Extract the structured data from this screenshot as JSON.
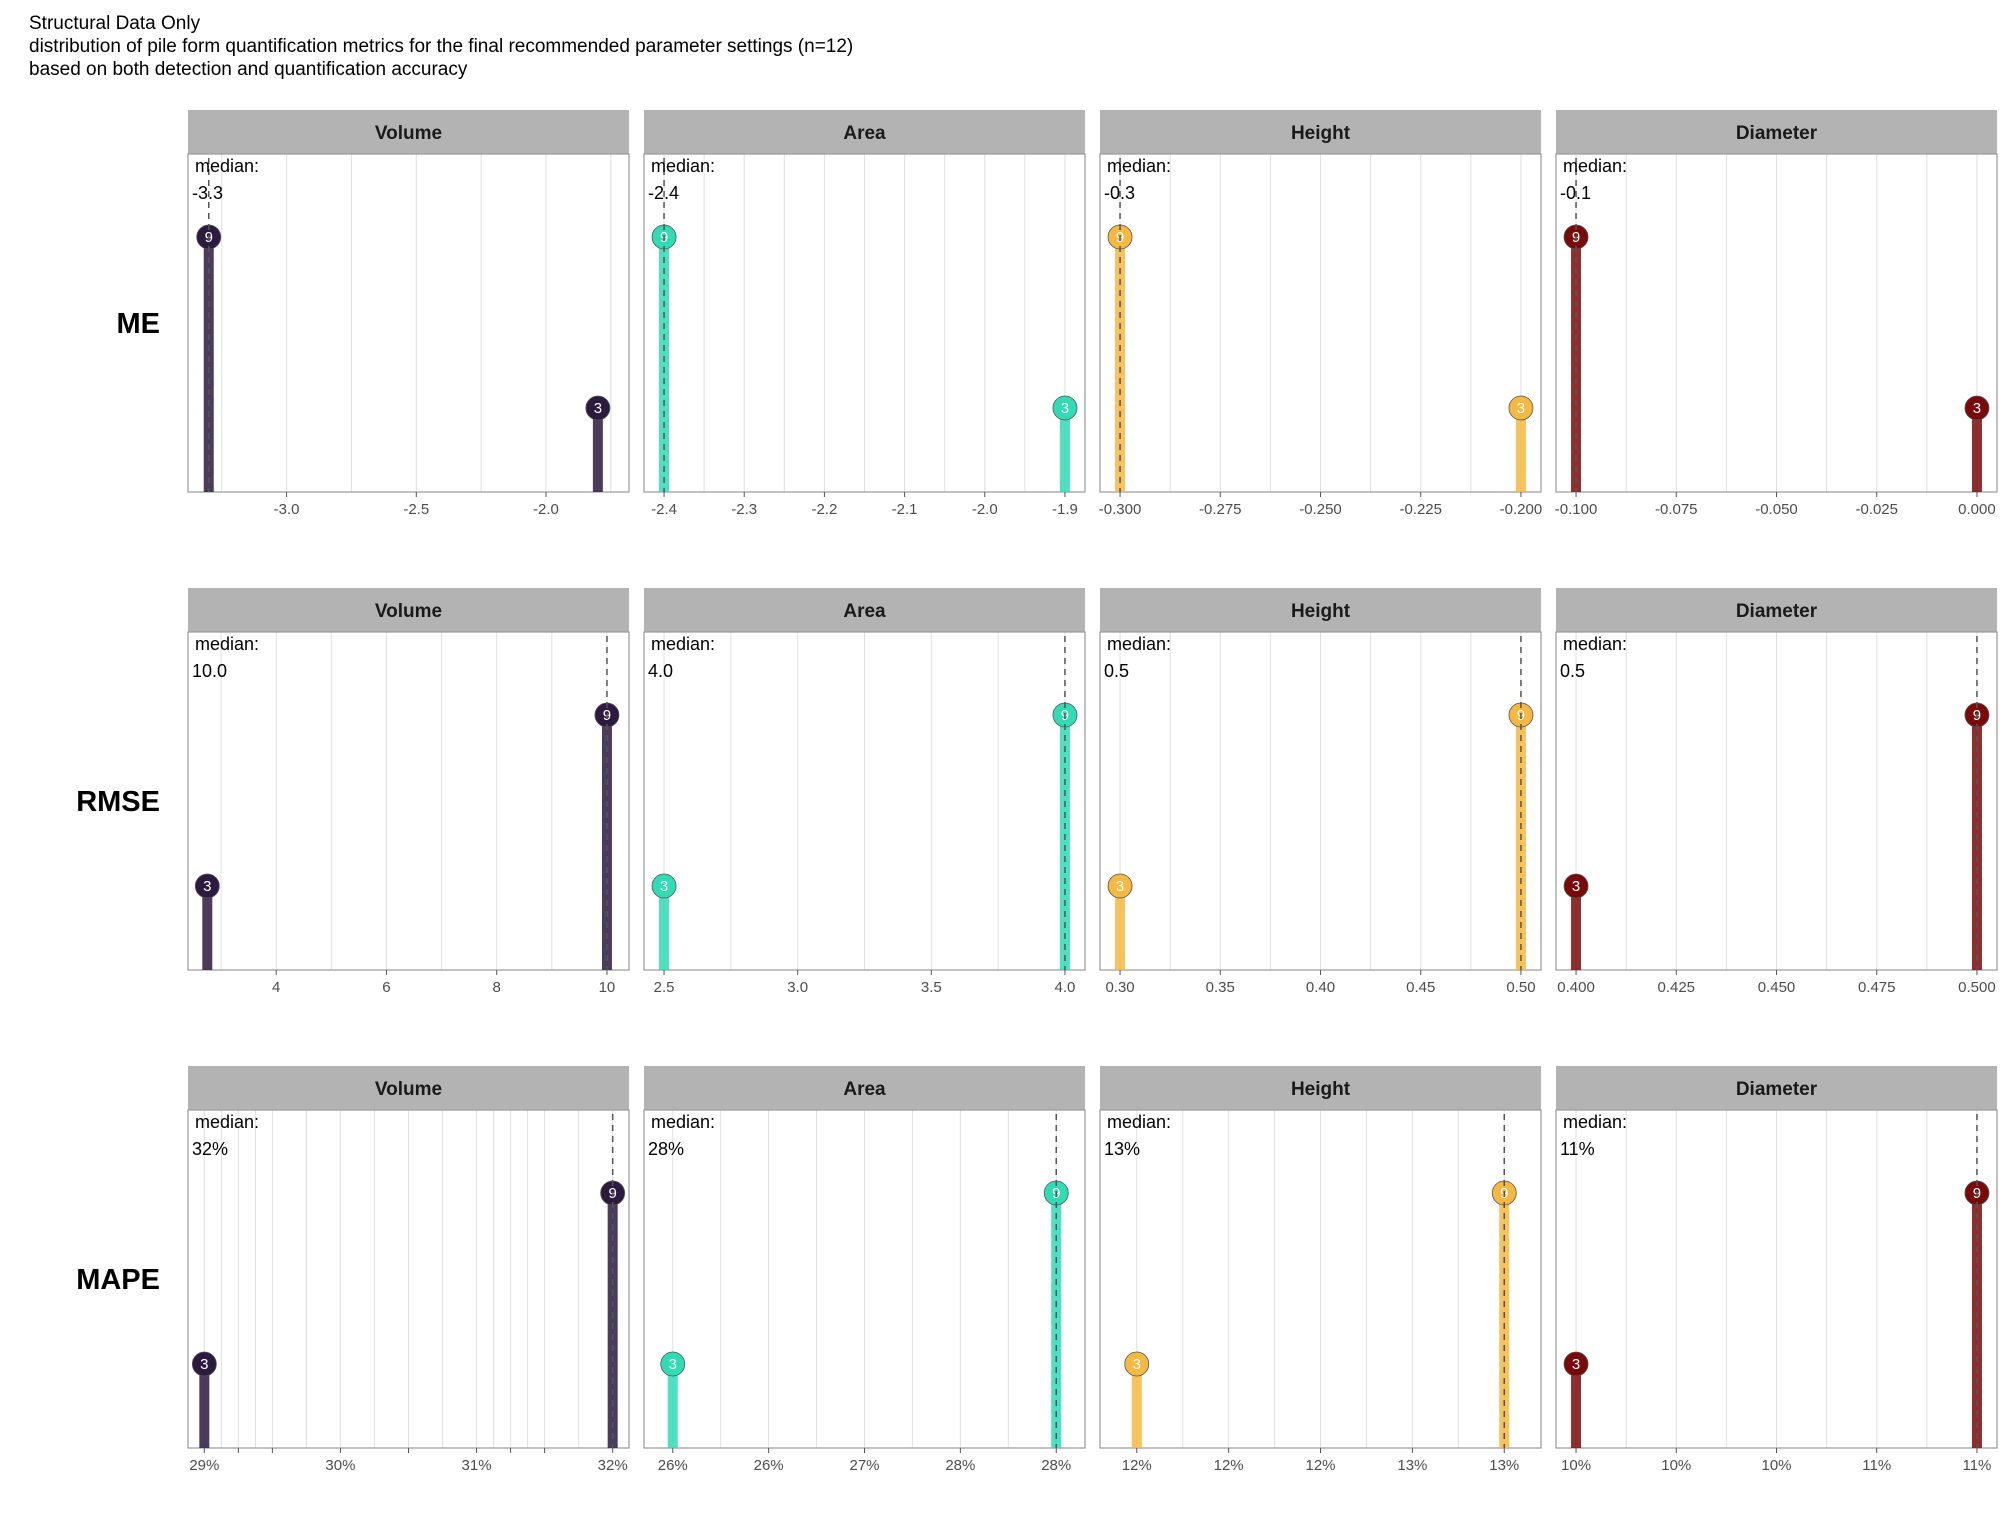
{
  "title": "Structural Data Only",
  "subtitle": "distribution of pile form quantification metrics for the final recommended parameter settings (n=12)",
  "caption": "based on both detection and quantification accuracy",
  "colors": {
    "Volume": "#2c1a3f",
    "Area": "#2fdcb4",
    "Height": "#f5b840",
    "Diameter": "#7a0a0a",
    "strip_bg": "#b3b3b3",
    "grid": "#e0e0e0",
    "panel_border": "#9a9a9a"
  },
  "chart_data": {
    "type": "bar",
    "columns": [
      "Volume",
      "Area",
      "Height",
      "Diameter"
    ],
    "median_label": "median:",
    "rows": [
      {
        "label": "ME",
        "panels": [
          {
            "strip": "Volume",
            "xlim": [
              -3.38,
              -1.68
            ],
            "ticks": [
              -3.0,
              -2.5,
              -2.0
            ],
            "tick_labels": [
              "-3.0",
              "-2.5",
              "-2.0"
            ],
            "points": [
              {
                "x": -3.3,
                "count": 9
              },
              {
                "x": -1.8,
                "count": 3
              }
            ],
            "median": -3.3,
            "median_text": "-3.3"
          },
          {
            "strip": "Area",
            "xlim": [
              -2.425,
              -1.875
            ],
            "ticks": [
              -2.4,
              -2.3,
              -2.2,
              -2.1,
              -2.0,
              -1.9
            ],
            "tick_labels": [
              "-2.4",
              "-2.3",
              "-2.2",
              "-2.1",
              "-2.0",
              "-1.9"
            ],
            "points": [
              {
                "x": -2.4,
                "count": 9
              },
              {
                "x": -1.9,
                "count": 3
              }
            ],
            "median": -2.4,
            "median_text": "-2.4"
          },
          {
            "strip": "Height",
            "xlim": [
              -0.305,
              -0.195
            ],
            "ticks": [
              -0.3,
              -0.275,
              -0.25,
              -0.225,
              -0.2
            ],
            "tick_labels": [
              "-0.300",
              "-0.275",
              "-0.250",
              "-0.225",
              "-0.200"
            ],
            "points": [
              {
                "x": -0.3,
                "count": 9
              },
              {
                "x": -0.2,
                "count": 3
              }
            ],
            "median": -0.3,
            "median_text": "-0.3"
          },
          {
            "strip": "Diameter",
            "xlim": [
              -0.105,
              0.005
            ],
            "ticks": [
              -0.1,
              -0.075,
              -0.05,
              -0.025,
              0.0
            ],
            "tick_labels": [
              "-0.100",
              "-0.075",
              "-0.050",
              "-0.025",
              "0.000"
            ],
            "points": [
              {
                "x": -0.1,
                "count": 9
              },
              {
                "x": 0.0,
                "count": 3
              }
            ],
            "median": -0.1,
            "median_text": "-0.1"
          }
        ]
      },
      {
        "label": "RMSE",
        "panels": [
          {
            "strip": "Volume",
            "xlim": [
              2.4,
              10.4
            ],
            "ticks": [
              4,
              6,
              8,
              10
            ],
            "tick_labels": [
              "4",
              "6",
              "8",
              "10"
            ],
            "points": [
              {
                "x": 2.75,
                "count": 3
              },
              {
                "x": 10.0,
                "count": 9
              }
            ],
            "median": 10.0,
            "median_text": "10.0"
          },
          {
            "strip": "Area",
            "xlim": [
              2.425,
              4.075
            ],
            "ticks": [
              2.5,
              3.0,
              3.5,
              4.0
            ],
            "tick_labels": [
              "2.5",
              "3.0",
              "3.5",
              "4.0"
            ],
            "points": [
              {
                "x": 2.5,
                "count": 3
              },
              {
                "x": 4.0,
                "count": 9
              }
            ],
            "median": 4.0,
            "median_text": "4.0"
          },
          {
            "strip": "Height",
            "xlim": [
              0.29,
              0.51
            ],
            "ticks": [
              0.3,
              0.35,
              0.4,
              0.45,
              0.5
            ],
            "tick_labels": [
              "0.30",
              "0.35",
              "0.40",
              "0.45",
              "0.50"
            ],
            "points": [
              {
                "x": 0.3,
                "count": 3
              },
              {
                "x": 0.5,
                "count": 9
              }
            ],
            "median": 0.5,
            "median_text": "0.5"
          },
          {
            "strip": "Diameter",
            "xlim": [
              0.395,
              0.505
            ],
            "ticks": [
              0.4,
              0.425,
              0.45,
              0.475,
              0.5
            ],
            "tick_labels": [
              "0.400",
              "0.425",
              "0.450",
              "0.475",
              "0.500"
            ],
            "points": [
              {
                "x": 0.4,
                "count": 3
              },
              {
                "x": 0.5,
                "count": 9
              }
            ],
            "median": 0.5,
            "median_text": "0.5"
          }
        ]
      },
      {
        "label": "MAPE",
        "panels": [
          {
            "strip": "Volume",
            "xlim": [
              0.2888,
              0.3212
            ],
            "ticks": [
              0.29,
              0.2925,
              0.295,
              0.3,
              0.305,
              0.31,
              0.3125,
              0.315,
              0.32
            ],
            "tick_labels": [
              "29%",
              "",
              "",
              "30%",
              "",
              "31%",
              "",
              "",
              "32%"
            ],
            "points": [
              {
                "x": 0.29,
                "count": 3
              },
              {
                "x": 0.32,
                "count": 9
              }
            ],
            "median": 0.32,
            "median_text": "32%"
          },
          {
            "strip": "Area",
            "xlim": [
              0.2585,
              0.2815
            ],
            "ticks": [
              0.26,
              0.265,
              0.27,
              0.275,
              0.28
            ],
            "tick_labels": [
              "26%",
              "26%",
              "27%",
              "28%",
              "28%"
            ],
            "points": [
              {
                "x": 0.26,
                "count": 3
              },
              {
                "x": 0.28,
                "count": 9
              }
            ],
            "median": 0.28,
            "median_text": "28%"
          },
          {
            "strip": "Height",
            "xlim": [
              0.119,
              0.131
            ],
            "ticks": [
              0.12,
              0.1225,
              0.125,
              0.1275,
              0.13
            ],
            "tick_labels": [
              "12%",
              "12%",
              "12%",
              "13%",
              "13%"
            ],
            "points": [
              {
                "x": 0.12,
                "count": 3
              },
              {
                "x": 0.13,
                "count": 9
              }
            ],
            "median": 0.13,
            "median_text": "13%"
          },
          {
            "strip": "Diameter",
            "xlim": [
              0.0995,
              0.1105
            ],
            "ticks": [
              0.1,
              0.1025,
              0.105,
              0.1075,
              0.11
            ],
            "tick_labels": [
              "10%",
              "10%",
              "10%",
              "11%",
              "11%"
            ],
            "points": [
              {
                "x": 0.1,
                "count": 3
              },
              {
                "x": 0.11,
                "count": 9
              }
            ],
            "median": 0.11,
            "median_text": "11%"
          }
        ]
      }
    ]
  }
}
